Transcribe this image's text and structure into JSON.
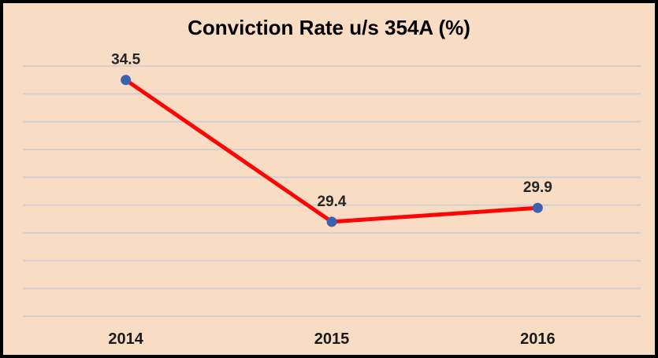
{
  "chart_data": {
    "type": "line",
    "title": "Conviction Rate u/s 354A (%)",
    "categories": [
      "2014",
      "2015",
      "2016"
    ],
    "series": [
      {
        "name": "Conviction Rate u/s 354A (%)",
        "values": [
          34.5,
          29.4,
          29.9
        ],
        "point_labels": [
          "34.5",
          "29.4",
          "29.9"
        ]
      }
    ],
    "xlabel": "",
    "ylabel": "",
    "ylim": [
      26,
      35
    ],
    "gridline_step": 1,
    "grid": "horizontal-only",
    "legend": "none",
    "colors": {
      "background": "#f9dcc4",
      "border": "#000000",
      "gridline": "#d2d0ce",
      "line": "#fe0505",
      "marker": "#3e61ae",
      "title_text": "#000000",
      "data_label_text": "#262626",
      "axis_label_text": "#1a1a1a"
    }
  }
}
